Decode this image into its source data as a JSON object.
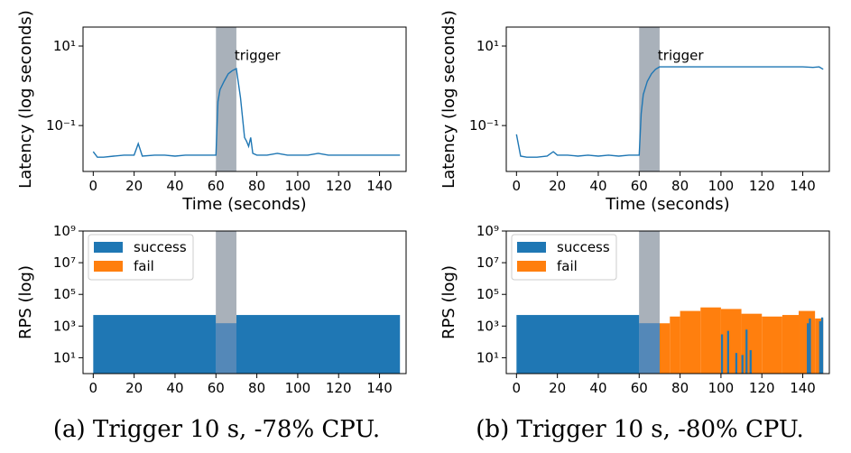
{
  "colors": {
    "success": "#1f77b4",
    "fail": "#ff7f0e",
    "trigger_band": "#a9b1ba",
    "line": "#1f77b4"
  },
  "chart_data": [
    {
      "type": "line",
      "caption": "(a) Trigger 10 s, -78% CPU.",
      "xlabel": "Time (seconds)",
      "ylabel": "Latency (log seconds)",
      "xlim": [
        -5,
        153
      ],
      "ylim": [
        0.007,
        30
      ],
      "yscale": "log",
      "xticks": [
        0,
        20,
        40,
        60,
        80,
        100,
        120,
        140
      ],
      "yticks": [
        {
          "value": 10,
          "label": "10¹"
        },
        {
          "value": 0.1,
          "label": "10⁻¹"
        }
      ],
      "trigger": {
        "x0": 60,
        "x1": 70,
        "label": "trigger"
      },
      "x": [
        0,
        2,
        5,
        10,
        15,
        20,
        22,
        24,
        30,
        35,
        40,
        45,
        50,
        55,
        58,
        60,
        61,
        62,
        64,
        66,
        68,
        70,
        72,
        74,
        75,
        76,
        77,
        78,
        80,
        85,
        90,
        95,
        100,
        105,
        110,
        115,
        120,
        125,
        130,
        135,
        140,
        145,
        150
      ],
      "y": [
        0.022,
        0.016,
        0.016,
        0.017,
        0.018,
        0.018,
        0.035,
        0.017,
        0.018,
        0.018,
        0.017,
        0.018,
        0.018,
        0.018,
        0.018,
        0.018,
        0.4,
        0.8,
        1.3,
        2.0,
        2.4,
        2.7,
        0.5,
        0.05,
        0.04,
        0.03,
        0.05,
        0.02,
        0.018,
        0.018,
        0.02,
        0.018,
        0.018,
        0.018,
        0.02,
        0.018,
        0.018,
        0.018,
        0.018,
        0.018,
        0.018,
        0.018,
        0.018
      ]
    },
    {
      "type": "bar",
      "xlim": [
        -5,
        153
      ],
      "ylim": [
        1,
        1000000000.0
      ],
      "yscale": "log",
      "ylabel": "RPS (log)",
      "xticks": [
        0,
        20,
        40,
        60,
        80,
        100,
        120,
        140
      ],
      "yticks": [
        {
          "value": 10,
          "label": "10¹"
        },
        {
          "value": 1000,
          "label": "10³"
        },
        {
          "value": 100000,
          "label": "10⁵"
        },
        {
          "value": 10000000,
          "label": "10⁷"
        },
        {
          "value": 1000000000,
          "label": "10⁹"
        }
      ],
      "trigger": {
        "x0": 60,
        "x1": 70
      },
      "legend": [
        "success",
        "fail"
      ],
      "legend_position": "top-left",
      "segments": [
        {
          "series": "success",
          "x0": 0,
          "x1": 60,
          "value": 5000
        },
        {
          "series": "success",
          "x0": 60,
          "x1": 70,
          "value": 1500
        },
        {
          "series": "success",
          "x0": 70,
          "x1": 150,
          "value": 5000
        }
      ]
    },
    {
      "type": "line",
      "caption": "(b) Trigger 10 s, -80% CPU.",
      "xlabel": "Time (seconds)",
      "ylabel": "Latency (log seconds)",
      "xlim": [
        -5,
        153
      ],
      "ylim": [
        0.007,
        30
      ],
      "yscale": "log",
      "xticks": [
        0,
        20,
        40,
        60,
        80,
        100,
        120,
        140
      ],
      "yticks": [
        {
          "value": 10,
          "label": "10¹"
        },
        {
          "value": 0.1,
          "label": "10⁻¹"
        }
      ],
      "trigger": {
        "x0": 60,
        "x1": 70,
        "label": "trigger"
      },
      "x": [
        0,
        2,
        5,
        10,
        15,
        18,
        20,
        25,
        30,
        35,
        40,
        45,
        50,
        55,
        60,
        61,
        62,
        64,
        66,
        68,
        70,
        72,
        80,
        90,
        100,
        110,
        120,
        130,
        140,
        145,
        148,
        150
      ],
      "y": [
        0.06,
        0.017,
        0.016,
        0.016,
        0.017,
        0.022,
        0.018,
        0.018,
        0.017,
        0.018,
        0.017,
        0.018,
        0.017,
        0.018,
        0.018,
        0.2,
        0.6,
        1.3,
        2.0,
        2.6,
        3.0,
        3.0,
        3.0,
        3.0,
        3.0,
        3.0,
        3.0,
        3.0,
        3.0,
        2.9,
        3.0,
        2.6
      ]
    },
    {
      "type": "bar",
      "xlim": [
        -5,
        153
      ],
      "ylim": [
        1,
        1000000000.0
      ],
      "yscale": "log",
      "ylabel": "RPS (log)",
      "xticks": [
        0,
        20,
        40,
        60,
        80,
        100,
        120,
        140
      ],
      "yticks": [
        {
          "value": 10,
          "label": "10¹"
        },
        {
          "value": 1000,
          "label": "10³"
        },
        {
          "value": 100000,
          "label": "10⁵"
        },
        {
          "value": 10000000,
          "label": "10⁷"
        },
        {
          "value": 1000000000,
          "label": "10⁹"
        }
      ],
      "trigger": {
        "x0": 60,
        "x1": 70
      },
      "legend": [
        "success",
        "fail"
      ],
      "legend_position": "top-left",
      "segments": [
        {
          "series": "success",
          "x0": 0,
          "x1": 60,
          "value": 5000
        },
        {
          "series": "success",
          "x0": 60,
          "x1": 70,
          "value": 1500
        },
        {
          "series": "fail",
          "x0": 70,
          "x1": 75,
          "value": 1500
        },
        {
          "series": "fail",
          "x0": 75,
          "x1": 80,
          "value": 4000
        },
        {
          "series": "fail",
          "x0": 80,
          "x1": 90,
          "value": 9000
        },
        {
          "series": "fail",
          "x0": 90,
          "x1": 100,
          "value": 15000
        },
        {
          "series": "fail",
          "x0": 100,
          "x1": 110,
          "value": 12000
        },
        {
          "series": "fail",
          "x0": 110,
          "x1": 120,
          "value": 6000
        },
        {
          "series": "fail",
          "x0": 120,
          "x1": 130,
          "value": 4000
        },
        {
          "series": "fail",
          "x0": 130,
          "x1": 138,
          "value": 5000
        },
        {
          "series": "fail",
          "x0": 138,
          "x1": 146,
          "value": 9000
        },
        {
          "series": "fail",
          "x0": 146,
          "x1": 150,
          "value": 3000
        },
        {
          "series": "success",
          "x0": 100,
          "x1": 101,
          "value": 300
        },
        {
          "series": "success",
          "x0": 103,
          "x1": 104,
          "value": 500
        },
        {
          "series": "success",
          "x0": 107,
          "x1": 108,
          "value": 20
        },
        {
          "series": "success",
          "x0": 110,
          "x1": 111,
          "value": 15
        },
        {
          "series": "success",
          "x0": 112,
          "x1": 113,
          "value": 600
        },
        {
          "series": "success",
          "x0": 114,
          "x1": 115,
          "value": 30
        },
        {
          "series": "success",
          "x0": 142,
          "x1": 143,
          "value": 1500
        },
        {
          "series": "success",
          "x0": 143,
          "x1": 144,
          "value": 3000
        },
        {
          "series": "success",
          "x0": 148,
          "x1": 149,
          "value": 2000
        },
        {
          "series": "success",
          "x0": 149,
          "x1": 150,
          "value": 3500
        }
      ]
    }
  ]
}
